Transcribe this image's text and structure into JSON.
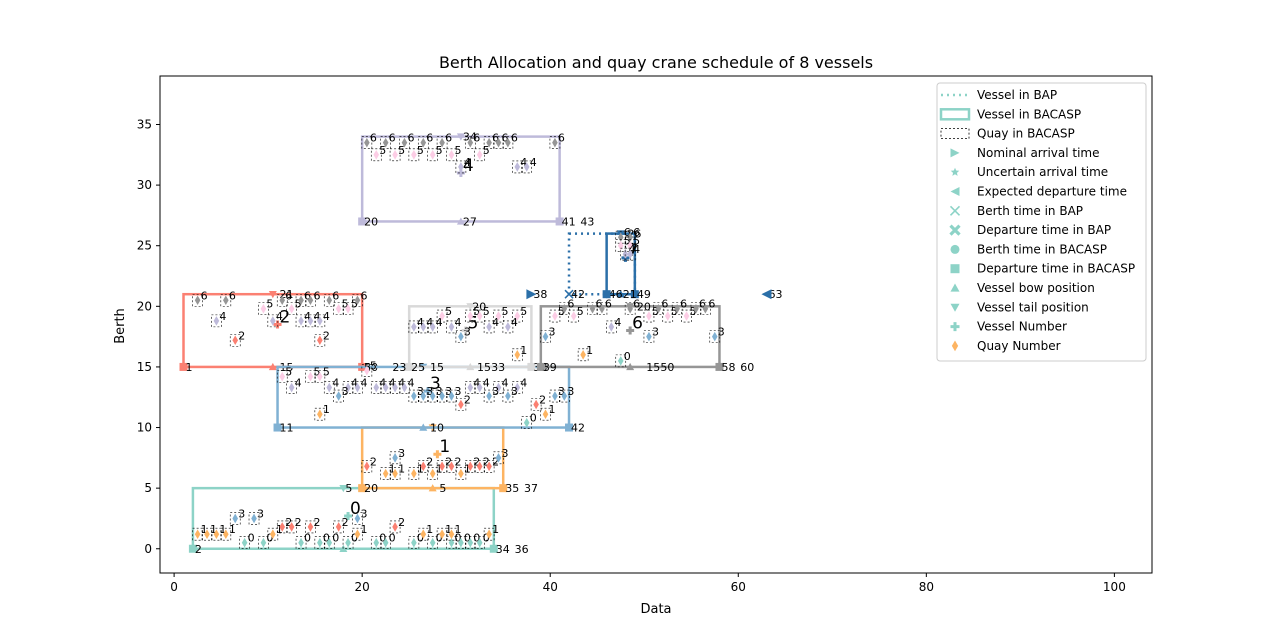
{
  "chart_data": {
    "type": "scatter",
    "title": "Berth Allocation and quay crane schedule  of 8 vessels",
    "xlabel": "Data",
    "ylabel": "Berth",
    "xlim": [
      -1.5,
      104
    ],
    "ylim": [
      -2,
      39
    ],
    "x_ticks": [
      0,
      20,
      40,
      60,
      80,
      100
    ],
    "y_ticks": [
      0,
      5,
      10,
      15,
      20,
      25,
      30,
      35
    ],
    "grid": false,
    "legend_position": "top-right",
    "legend": [
      {
        "label": "Vessel in BAP",
        "kind": "dotted-line",
        "color": "#8dd3c7"
      },
      {
        "label": "Vessel in BACASP",
        "kind": "solid-line",
        "color": "#8dd3c7"
      },
      {
        "label": "Quay in BACASP",
        "kind": "dashed-box",
        "color": "#000000"
      },
      {
        "label": "Nominal arrival time",
        "kind": "marker",
        "marker": "triangle-right",
        "color": "#8dd3c7"
      },
      {
        "label": "Uncertain arrival time",
        "kind": "marker",
        "marker": "star",
        "color": "#8dd3c7"
      },
      {
        "label": "Expected departure time",
        "kind": "marker",
        "marker": "triangle-left",
        "color": "#8dd3c7"
      },
      {
        "label": "Berth time in BAP",
        "kind": "marker",
        "marker": "x",
        "color": "#8dd3c7"
      },
      {
        "label": "Departure time in BAP",
        "kind": "marker",
        "marker": "x-filled",
        "color": "#8dd3c7"
      },
      {
        "label": "Berth time in BACASP",
        "kind": "marker",
        "marker": "circle",
        "color": "#8dd3c7"
      },
      {
        "label": "Departure time in BACASP",
        "kind": "marker",
        "marker": "square",
        "color": "#8dd3c7"
      },
      {
        "label": "Vessel bow position",
        "kind": "marker",
        "marker": "triangle-up",
        "color": "#8dd3c7"
      },
      {
        "label": "Vessel tail position",
        "kind": "marker",
        "marker": "triangle-down",
        "color": "#8dd3c7"
      },
      {
        "label": "Vessel Number",
        "kind": "marker",
        "marker": "plus",
        "color": "#8dd3c7"
      },
      {
        "label": "Quay Number",
        "kind": "marker",
        "marker": "diamond",
        "color": "#fdb462"
      }
    ],
    "vessels": [
      {
        "id": "0",
        "color": "#8dd3c7",
        "bacasp_rect": [
          2,
          0,
          34,
          5
        ],
        "label_pos": [
          18.5,
          2.7
        ],
        "time_labels": [
          {
            "t": "2",
            "x": 2,
            "y": 0
          },
          {
            "t": "34",
            "x": 34,
            "y": 0
          },
          {
            "t": "36",
            "x": 36,
            "y": 0
          },
          {
            "t": "5",
            "x": 18,
            "y": 5
          }
        ]
      },
      {
        "id": "1",
        "color": "#fdb462",
        "bacasp_rect": [
          20,
          5,
          35,
          10
        ],
        "label_pos": [
          28,
          7.8
        ],
        "time_labels": [
          {
            "t": "20",
            "x": 20,
            "y": 5
          },
          {
            "t": "35",
            "x": 35,
            "y": 5
          },
          {
            "t": "37",
            "x": 37,
            "y": 5
          },
          {
            "t": "5",
            "x": 28,
            "y": 5
          }
        ]
      },
      {
        "id": "2",
        "color": "#fb8072",
        "bacasp_rect": [
          1,
          15,
          20,
          21
        ],
        "label_pos": [
          11,
          18.5
        ],
        "time_labels": [
          {
            "t": "1",
            "x": 1,
            "y": 15
          },
          {
            "t": "15",
            "x": 11,
            "y": 15
          },
          {
            "t": "20",
            "x": 20,
            "y": 15
          },
          {
            "t": "21",
            "x": 11,
            "y": 21
          }
        ]
      },
      {
        "id": "3",
        "color": "#80b1d3",
        "bacasp_rect": [
          11,
          10,
          42,
          15
        ],
        "label_pos": [
          27,
          13
        ],
        "time_labels": [
          {
            "t": "11",
            "x": 11,
            "y": 10
          },
          {
            "t": "10",
            "x": 27,
            "y": 10
          },
          {
            "t": "42",
            "x": 42,
            "y": 10
          },
          {
            "t": "5",
            "x": 20,
            "y": 15
          }
        ]
      },
      {
        "id": "4",
        "color": "#bebada",
        "bacasp_rect": [
          20,
          27,
          41,
          34
        ],
        "label_pos": [
          30.5,
          31
        ],
        "time_labels": [
          {
            "t": "20",
            "x": 20,
            "y": 27
          },
          {
            "t": "27",
            "x": 30.5,
            "y": 27
          },
          {
            "t": "41",
            "x": 41,
            "y": 27
          },
          {
            "t": "43",
            "x": 43,
            "y": 27
          },
          {
            "t": "34",
            "x": 30.5,
            "y": 34
          }
        ]
      },
      {
        "id": "5",
        "color": "#d9d9d9",
        "bacasp_rect": [
          25,
          15,
          38,
          20
        ],
        "label_pos": [
          31,
          18
        ],
        "time_labels": [
          {
            "t": "23",
            "x": 23,
            "y": 15
          },
          {
            "t": "25",
            "x": 25,
            "y": 15
          },
          {
            "t": "15",
            "x": 27,
            "y": 15
          },
          {
            "t": "15",
            "x": 32,
            "y": 15
          },
          {
            "t": "33",
            "x": 33.5,
            "y": 15
          },
          {
            "t": "38",
            "x": 38,
            "y": 15
          },
          {
            "t": "20",
            "x": 31.5,
            "y": 20
          }
        ]
      },
      {
        "id": "6",
        "color": "#969696",
        "bacasp_rect": [
          39,
          15,
          58,
          20
        ],
        "label_pos": [
          48.5,
          18
        ],
        "time_labels": [
          {
            "t": "39",
            "x": 39,
            "y": 15
          },
          {
            "t": "15",
            "x": 50,
            "y": 15
          },
          {
            "t": "50",
            "x": 51.5,
            "y": 15
          },
          {
            "t": "58",
            "x": 58,
            "y": 15
          },
          {
            "t": "60",
            "x": 60,
            "y": 15
          },
          {
            "t": "20",
            "x": 49,
            "y": 20
          }
        ]
      },
      {
        "id": "7",
        "color": "#2b6fa8",
        "bap_rect": [
          42,
          21,
          49,
          26
        ],
        "bacasp_rect": [
          46,
          21,
          49,
          26
        ],
        "label_pos": [
          48,
          24
        ],
        "time_labels": [
          {
            "t": "38",
            "x": 38,
            "y": 21
          },
          {
            "t": "42",
            "x": 42,
            "y": 21
          },
          {
            "t": "46",
            "x": 46,
            "y": 21
          },
          {
            "t": "21",
            "x": 47.5,
            "y": 21
          },
          {
            "t": "49",
            "x": 49,
            "y": 21
          },
          {
            "t": "63",
            "x": 63,
            "y": 21
          },
          {
            "t": "26",
            "x": 48,
            "y": 26
          }
        ]
      }
    ],
    "quay_cranes": [
      {
        "q": "0",
        "x": 7.5,
        "y": 0.5
      },
      {
        "q": "0",
        "x": 9.5,
        "y": 0.5
      },
      {
        "q": "0",
        "x": 13.5,
        "y": 0.5
      },
      {
        "q": "0",
        "x": 15.5,
        "y": 0.5
      },
      {
        "q": "0",
        "x": 16.5,
        "y": 0.5
      },
      {
        "q": "0",
        "x": 18.5,
        "y": 0.5
      },
      {
        "q": "0",
        "x": 21.5,
        "y": 0.5
      },
      {
        "q": "0",
        "x": 22.5,
        "y": 0.5
      },
      {
        "q": "0",
        "x": 25.5,
        "y": 0.5
      },
      {
        "q": "0",
        "x": 27.5,
        "y": 0.5
      },
      {
        "q": "0",
        "x": 29.5,
        "y": 0.5
      },
      {
        "q": "0",
        "x": 30.5,
        "y": 0.5
      },
      {
        "q": "0",
        "x": 31.5,
        "y": 0.5
      },
      {
        "q": "0",
        "x": 32.5,
        "y": 0.5
      },
      {
        "q": "1",
        "x": 2.5,
        "y": 1.2
      },
      {
        "q": "1",
        "x": 3.5,
        "y": 1.2
      },
      {
        "q": "1",
        "x": 4.5,
        "y": 1.2
      },
      {
        "q": "1",
        "x": 5.5,
        "y": 1.2
      },
      {
        "q": "1",
        "x": 10.5,
        "y": 1.2
      },
      {
        "q": "1",
        "x": 19.5,
        "y": 1.2
      },
      {
        "q": "1",
        "x": 26.5,
        "y": 1.2
      },
      {
        "q": "1",
        "x": 28.5,
        "y": 1.2
      },
      {
        "q": "1",
        "x": 29.5,
        "y": 1.2
      },
      {
        "q": "1",
        "x": 33.5,
        "y": 1.2
      },
      {
        "q": "2",
        "x": 11.5,
        "y": 1.8
      },
      {
        "q": "2",
        "x": 12.5,
        "y": 1.8
      },
      {
        "q": "2",
        "x": 14.5,
        "y": 1.8
      },
      {
        "q": "2",
        "x": 17.5,
        "y": 1.8
      },
      {
        "q": "2",
        "x": 23.5,
        "y": 1.8
      },
      {
        "q": "3",
        "x": 6.5,
        "y": 2.5
      },
      {
        "q": "3",
        "x": 8.5,
        "y": 2.5
      },
      {
        "q": "3",
        "x": 19.5,
        "y": 2.5
      },
      {
        "q": "1",
        "x": 22.5,
        "y": 6.2
      },
      {
        "q": "1",
        "x": 23.5,
        "y": 6.2
      },
      {
        "q": "1",
        "x": 25.5,
        "y": 6.2
      },
      {
        "q": "1",
        "x": 27.5,
        "y": 6.2
      },
      {
        "q": "1",
        "x": 30.5,
        "y": 6.2
      },
      {
        "q": "2",
        "x": 20.5,
        "y": 6.8
      },
      {
        "q": "2",
        "x": 26.5,
        "y": 6.8
      },
      {
        "q": "2",
        "x": 28.5,
        "y": 6.8
      },
      {
        "q": "2",
        "x": 29.5,
        "y": 6.8
      },
      {
        "q": "2",
        "x": 31.5,
        "y": 6.8
      },
      {
        "q": "2",
        "x": 32.5,
        "y": 6.8
      },
      {
        "q": "2",
        "x": 33.5,
        "y": 6.8
      },
      {
        "q": "3",
        "x": 23.5,
        "y": 7.5
      },
      {
        "q": "3",
        "x": 34.5,
        "y": 7.5
      },
      {
        "q": "4",
        "x": 10.5,
        "y": 18.8
      },
      {
        "q": "4",
        "x": 13.5,
        "y": 18.8
      },
      {
        "q": "4",
        "x": 14.5,
        "y": 18.8
      },
      {
        "q": "4",
        "x": 15.5,
        "y": 18.8
      },
      {
        "q": "4",
        "x": 4.5,
        "y": 18.8
      },
      {
        "q": "2",
        "x": 6.5,
        "y": 17.2
      },
      {
        "q": "2",
        "x": 15.5,
        "y": 17.2
      },
      {
        "q": "5",
        "x": 9.5,
        "y": 19.8
      },
      {
        "q": "5",
        "x": 12.5,
        "y": 19.8
      },
      {
        "q": "5",
        "x": 17.5,
        "y": 19.8
      },
      {
        "q": "5",
        "x": 18.5,
        "y": 19.8
      },
      {
        "q": "6",
        "x": 2.5,
        "y": 20.5
      },
      {
        "q": "6",
        "x": 5.5,
        "y": 20.5
      },
      {
        "q": "6",
        "x": 11.5,
        "y": 20.5
      },
      {
        "q": "6",
        "x": 13.5,
        "y": 20.5
      },
      {
        "q": "6",
        "x": 14.5,
        "y": 20.5
      },
      {
        "q": "6",
        "x": 16.5,
        "y": 20.5
      },
      {
        "q": "6",
        "x": 19.5,
        "y": 20.5
      },
      {
        "q": "6",
        "x": 20.5,
        "y": 33.5
      },
      {
        "q": "6",
        "x": 22.5,
        "y": 33.5
      },
      {
        "q": "6",
        "x": 24.5,
        "y": 33.5
      },
      {
        "q": "6",
        "x": 26.5,
        "y": 33.5
      },
      {
        "q": "6",
        "x": 28.5,
        "y": 33.5
      },
      {
        "q": "6",
        "x": 31.5,
        "y": 33.5
      },
      {
        "q": "6",
        "x": 33.5,
        "y": 33.5
      },
      {
        "q": "6",
        "x": 34.5,
        "y": 33.5
      },
      {
        "q": "6",
        "x": 35.5,
        "y": 33.5
      },
      {
        "q": "6",
        "x": 40.5,
        "y": 33.5
      },
      {
        "q": "5",
        "x": 21.5,
        "y": 32.5
      },
      {
        "q": "5",
        "x": 23.5,
        "y": 32.5
      },
      {
        "q": "5",
        "x": 25.5,
        "y": 32.5
      },
      {
        "q": "5",
        "x": 27.5,
        "y": 32.5
      },
      {
        "q": "5",
        "x": 29.5,
        "y": 32.5
      },
      {
        "q": "5",
        "x": 32.5,
        "y": 32.5
      },
      {
        "q": "4",
        "x": 30.5,
        "y": 31.5
      },
      {
        "q": "4",
        "x": 36.5,
        "y": 31.5
      },
      {
        "q": "4",
        "x": 37.5,
        "y": 31.5
      },
      {
        "q": "1",
        "x": 36.5,
        "y": 16
      },
      {
        "q": "1",
        "x": 43.5,
        "y": 16
      },
      {
        "q": "3",
        "x": 30.5,
        "y": 17.5
      },
      {
        "q": "3",
        "x": 39.5,
        "y": 17.5
      },
      {
        "q": "3",
        "x": 50.5,
        "y": 17.5
      },
      {
        "q": "3",
        "x": 57.5,
        "y": 17.5
      },
      {
        "q": "4",
        "x": 25.5,
        "y": 18.3
      },
      {
        "q": "4",
        "x": 26.5,
        "y": 18.3
      },
      {
        "q": "4",
        "x": 27.5,
        "y": 18.3
      },
      {
        "q": "4",
        "x": 29.5,
        "y": 18.3
      },
      {
        "q": "4",
        "x": 33.5,
        "y": 18.3
      },
      {
        "q": "4",
        "x": 35.5,
        "y": 18.3
      },
      {
        "q": "4",
        "x": 46.5,
        "y": 18.3
      },
      {
        "q": "5",
        "x": 28.5,
        "y": 19.2
      },
      {
        "q": "5",
        "x": 31.5,
        "y": 19.2
      },
      {
        "q": "5",
        "x": 32.5,
        "y": 19.2
      },
      {
        "q": "5",
        "x": 34.5,
        "y": 19.2
      },
      {
        "q": "5",
        "x": 36.5,
        "y": 19.2
      },
      {
        "q": "5",
        "x": 40.5,
        "y": 19.2
      },
      {
        "q": "5",
        "x": 42.5,
        "y": 19.2
      },
      {
        "q": "5",
        "x": 50.5,
        "y": 19.2
      },
      {
        "q": "5",
        "x": 52.5,
        "y": 19.2
      },
      {
        "q": "5",
        "x": 54.5,
        "y": 19.2
      },
      {
        "q": "6",
        "x": 41.5,
        "y": 19.8
      },
      {
        "q": "6",
        "x": 44.5,
        "y": 19.8
      },
      {
        "q": "6",
        "x": 45.5,
        "y": 19.8
      },
      {
        "q": "6",
        "x": 48.5,
        "y": 19.8
      },
      {
        "q": "6",
        "x": 51.5,
        "y": 19.8
      },
      {
        "q": "6",
        "x": 53.5,
        "y": 19.8
      },
      {
        "q": "6",
        "x": 55.5,
        "y": 19.8
      },
      {
        "q": "6",
        "x": 56.5,
        "y": 19.8
      },
      {
        "q": "5",
        "x": 11.5,
        "y": 14.2
      },
      {
        "q": "5",
        "x": 14.5,
        "y": 14.2
      },
      {
        "q": "5",
        "x": 15.5,
        "y": 14.2
      },
      {
        "q": "5",
        "x": 20.5,
        "y": 14.7
      },
      {
        "q": "4",
        "x": 12.5,
        "y": 13.3
      },
      {
        "q": "4",
        "x": 16.5,
        "y": 13.3
      },
      {
        "q": "4",
        "x": 18.5,
        "y": 13.3
      },
      {
        "q": "4",
        "x": 19.5,
        "y": 13.3
      },
      {
        "q": "4",
        "x": 21.5,
        "y": 13.3
      },
      {
        "q": "4",
        "x": 22.5,
        "y": 13.3
      },
      {
        "q": "4",
        "x": 23.5,
        "y": 13.3
      },
      {
        "q": "4",
        "x": 24.5,
        "y": 13.3
      },
      {
        "q": "4",
        "x": 31.5,
        "y": 13.3
      },
      {
        "q": "4",
        "x": 32.5,
        "y": 13.3
      },
      {
        "q": "4",
        "x": 34.5,
        "y": 13.3
      },
      {
        "q": "4",
        "x": 36.5,
        "y": 13.3
      },
      {
        "q": "3",
        "x": 17.5,
        "y": 12.6
      },
      {
        "q": "3",
        "x": 25.5,
        "y": 12.6
      },
      {
        "q": "3",
        "x": 26.5,
        "y": 12.6
      },
      {
        "q": "3",
        "x": 27.5,
        "y": 12.6
      },
      {
        "q": "3",
        "x": 28.5,
        "y": 12.6
      },
      {
        "q": "3",
        "x": 29.5,
        "y": 12.6
      },
      {
        "q": "3",
        "x": 33.5,
        "y": 12.6
      },
      {
        "q": "3",
        "x": 35.5,
        "y": 12.6
      },
      {
        "q": "3",
        "x": 40.5,
        "y": 12.6
      },
      {
        "q": "3",
        "x": 41.5,
        "y": 12.6
      },
      {
        "q": "2",
        "x": 30.5,
        "y": 11.9
      },
      {
        "q": "2",
        "x": 38.5,
        "y": 11.9
      },
      {
        "q": "1",
        "x": 15.5,
        "y": 11.1
      },
      {
        "q": "1",
        "x": 39.5,
        "y": 11.1
      },
      {
        "q": "0",
        "x": 37.5,
        "y": 10.4
      },
      {
        "q": "0",
        "x": 47.5,
        "y": 15.5
      },
      {
        "q": "6",
        "x": 47.5,
        "y": 25.7
      },
      {
        "q": "6",
        "x": 48.5,
        "y": 25.7
      },
      {
        "q": "5",
        "x": 47.5,
        "y": 25
      },
      {
        "q": "5",
        "x": 48.5,
        "y": 25
      },
      {
        "q": "4",
        "x": 48,
        "y": 24.3
      },
      {
        "q": "4",
        "x": 48.5,
        "y": 24.3
      }
    ]
  }
}
